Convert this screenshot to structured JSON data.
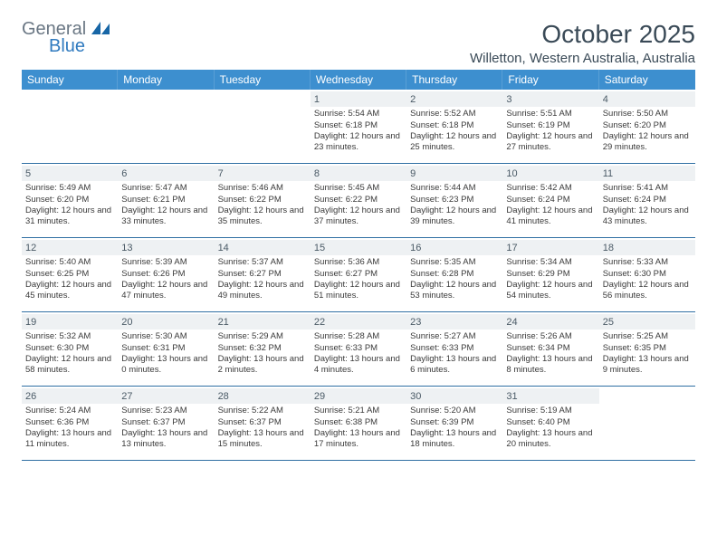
{
  "logo": {
    "text1": "General",
    "text2": "Blue"
  },
  "title": "October 2025",
  "location": "Willetton, Western Australia, Australia",
  "colors": {
    "header_bg": "#3d8fcf",
    "band_bg": "#eef1f3",
    "rule": "#2f6fa3",
    "title_color": "#3a4a57"
  },
  "day_names": [
    "Sunday",
    "Monday",
    "Tuesday",
    "Wednesday",
    "Thursday",
    "Friday",
    "Saturday"
  ],
  "weeks": [
    [
      null,
      null,
      null,
      {
        "n": "1",
        "sr": "5:54 AM",
        "ss": "6:18 PM",
        "dl": "12 hours and 23 minutes."
      },
      {
        "n": "2",
        "sr": "5:52 AM",
        "ss": "6:18 PM",
        "dl": "12 hours and 25 minutes."
      },
      {
        "n": "3",
        "sr": "5:51 AM",
        "ss": "6:19 PM",
        "dl": "12 hours and 27 minutes."
      },
      {
        "n": "4",
        "sr": "5:50 AM",
        "ss": "6:20 PM",
        "dl": "12 hours and 29 minutes."
      }
    ],
    [
      {
        "n": "5",
        "sr": "5:49 AM",
        "ss": "6:20 PM",
        "dl": "12 hours and 31 minutes."
      },
      {
        "n": "6",
        "sr": "5:47 AM",
        "ss": "6:21 PM",
        "dl": "12 hours and 33 minutes."
      },
      {
        "n": "7",
        "sr": "5:46 AM",
        "ss": "6:22 PM",
        "dl": "12 hours and 35 minutes."
      },
      {
        "n": "8",
        "sr": "5:45 AM",
        "ss": "6:22 PM",
        "dl": "12 hours and 37 minutes."
      },
      {
        "n": "9",
        "sr": "5:44 AM",
        "ss": "6:23 PM",
        "dl": "12 hours and 39 minutes."
      },
      {
        "n": "10",
        "sr": "5:42 AM",
        "ss": "6:24 PM",
        "dl": "12 hours and 41 minutes."
      },
      {
        "n": "11",
        "sr": "5:41 AM",
        "ss": "6:24 PM",
        "dl": "12 hours and 43 minutes."
      }
    ],
    [
      {
        "n": "12",
        "sr": "5:40 AM",
        "ss": "6:25 PM",
        "dl": "12 hours and 45 minutes."
      },
      {
        "n": "13",
        "sr": "5:39 AM",
        "ss": "6:26 PM",
        "dl": "12 hours and 47 minutes."
      },
      {
        "n": "14",
        "sr": "5:37 AM",
        "ss": "6:27 PM",
        "dl": "12 hours and 49 minutes."
      },
      {
        "n": "15",
        "sr": "5:36 AM",
        "ss": "6:27 PM",
        "dl": "12 hours and 51 minutes."
      },
      {
        "n": "16",
        "sr": "5:35 AM",
        "ss": "6:28 PM",
        "dl": "12 hours and 53 minutes."
      },
      {
        "n": "17",
        "sr": "5:34 AM",
        "ss": "6:29 PM",
        "dl": "12 hours and 54 minutes."
      },
      {
        "n": "18",
        "sr": "5:33 AM",
        "ss": "6:30 PM",
        "dl": "12 hours and 56 minutes."
      }
    ],
    [
      {
        "n": "19",
        "sr": "5:32 AM",
        "ss": "6:30 PM",
        "dl": "12 hours and 58 minutes."
      },
      {
        "n": "20",
        "sr": "5:30 AM",
        "ss": "6:31 PM",
        "dl": "13 hours and 0 minutes."
      },
      {
        "n": "21",
        "sr": "5:29 AM",
        "ss": "6:32 PM",
        "dl": "13 hours and 2 minutes."
      },
      {
        "n": "22",
        "sr": "5:28 AM",
        "ss": "6:33 PM",
        "dl": "13 hours and 4 minutes."
      },
      {
        "n": "23",
        "sr": "5:27 AM",
        "ss": "6:33 PM",
        "dl": "13 hours and 6 minutes."
      },
      {
        "n": "24",
        "sr": "5:26 AM",
        "ss": "6:34 PM",
        "dl": "13 hours and 8 minutes."
      },
      {
        "n": "25",
        "sr": "5:25 AM",
        "ss": "6:35 PM",
        "dl": "13 hours and 9 minutes."
      }
    ],
    [
      {
        "n": "26",
        "sr": "5:24 AM",
        "ss": "6:36 PM",
        "dl": "13 hours and 11 minutes."
      },
      {
        "n": "27",
        "sr": "5:23 AM",
        "ss": "6:37 PM",
        "dl": "13 hours and 13 minutes."
      },
      {
        "n": "28",
        "sr": "5:22 AM",
        "ss": "6:37 PM",
        "dl": "13 hours and 15 minutes."
      },
      {
        "n": "29",
        "sr": "5:21 AM",
        "ss": "6:38 PM",
        "dl": "13 hours and 17 minutes."
      },
      {
        "n": "30",
        "sr": "5:20 AM",
        "ss": "6:39 PM",
        "dl": "13 hours and 18 minutes."
      },
      {
        "n": "31",
        "sr": "5:19 AM",
        "ss": "6:40 PM",
        "dl": "13 hours and 20 minutes."
      },
      null
    ]
  ],
  "labels": {
    "sunrise": "Sunrise:",
    "sunset": "Sunset:",
    "daylight": "Daylight:"
  }
}
